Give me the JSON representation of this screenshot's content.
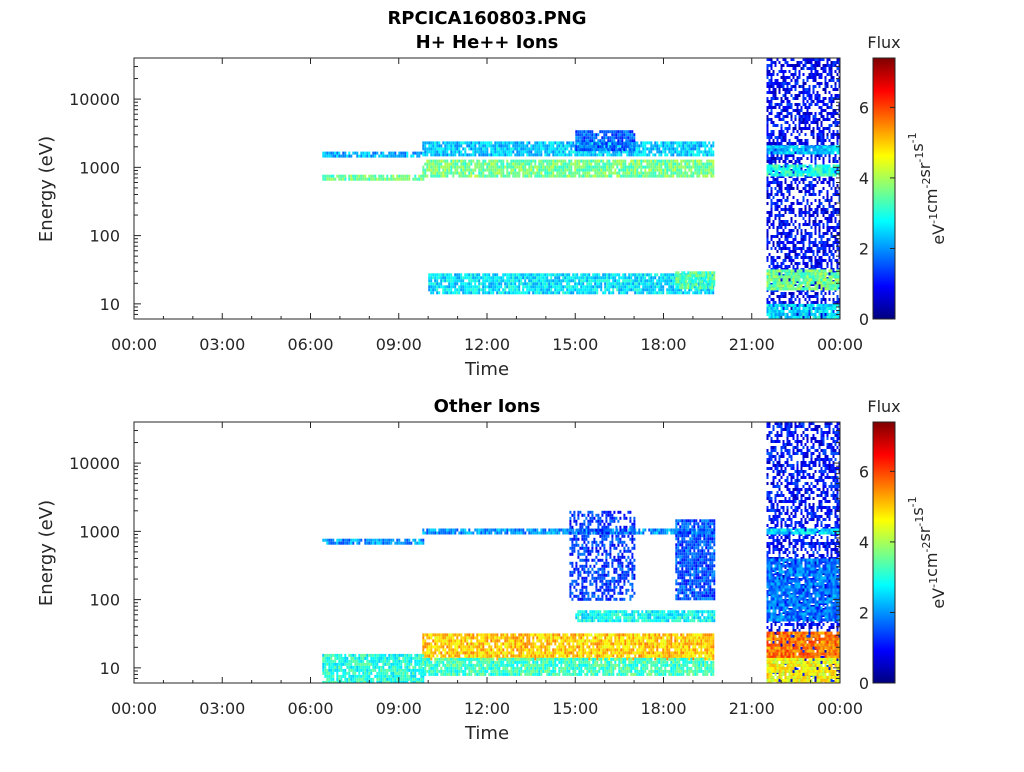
{
  "figure": {
    "title": "RPCICA160803.PNG"
  },
  "colormap": [
    "#00007f",
    "#0000ff",
    "#007fff",
    "#00ffff",
    "#7fff7f",
    "#ffff00",
    "#ff7f00",
    "#ff0000",
    "#7f0000"
  ],
  "chart_data": [
    {
      "type": "heatmap",
      "title": "H+ He++ Ions",
      "xlabel": "Time",
      "ylabel": "Energy (eV)",
      "x_ticks": [
        "00:00",
        "03:00",
        "06:00",
        "09:00",
        "12:00",
        "15:00",
        "18:00",
        "21:00",
        "00:00"
      ],
      "x_tick_hours": [
        0,
        3,
        6,
        9,
        12,
        15,
        18,
        21,
        24
      ],
      "xlim_hours": [
        0,
        24
      ],
      "y_scale": "log",
      "ylim": [
        6,
        40000
      ],
      "y_ticks": [
        "10",
        "100",
        "1000",
        "10000"
      ],
      "y_tick_values": [
        10,
        100,
        1000,
        10000
      ],
      "colorbar": {
        "label": "Flux",
        "unit": "eV-1cm-2sr-1s-1",
        "range": [
          0,
          7.4
        ],
        "ticks": [
          "0",
          "2",
          "4",
          "6"
        ],
        "tick_values": [
          0,
          2,
          4,
          6
        ]
      },
      "data_gaps_hours": [
        [
          19.75,
          21.5
        ]
      ],
      "bands": [
        {
          "t": [
            6.4,
            9.8
          ],
          "e": [
            650,
            780
          ],
          "flux": 3.5
        },
        {
          "t": [
            6.4,
            9.8
          ],
          "e": [
            1400,
            1700
          ],
          "flux": 2.2
        },
        {
          "t": [
            9.8,
            19.7
          ],
          "e": [
            750,
            1300
          ],
          "flux": 3.6
        },
        {
          "t": [
            9.8,
            19.7
          ],
          "e": [
            1600,
            2400
          ],
          "flux": 2.4
        },
        {
          "t": [
            10.0,
            19.7
          ],
          "e": [
            14,
            28
          ],
          "flux": 2.6
        },
        {
          "t": [
            18.4,
            19.7
          ],
          "e": [
            18,
            30
          ],
          "flux": 3.4
        },
        {
          "t": [
            15.0,
            17.0
          ],
          "e": [
            1800,
            3500
          ],
          "flux": 1.6
        },
        {
          "t": [
            21.5,
            24
          ],
          "e": [
            6,
            40000
          ],
          "flux": 0.9
        },
        {
          "t": [
            21.5,
            24
          ],
          "e": [
            16,
            32
          ],
          "flux": 3.6
        },
        {
          "t": [
            21.5,
            24
          ],
          "e": [
            800,
            1100
          ],
          "flux": 3.0
        },
        {
          "t": [
            21.5,
            24
          ],
          "e": [
            1700,
            2100
          ],
          "flux": 2.4
        },
        {
          "t": [
            21.5,
            24
          ],
          "e": [
            6,
            10
          ],
          "flux": 2.6
        }
      ]
    },
    {
      "type": "heatmap",
      "title": "Other Ions",
      "xlabel": "Time",
      "ylabel": "Energy (eV)",
      "x_ticks": [
        "00:00",
        "03:00",
        "06:00",
        "09:00",
        "12:00",
        "15:00",
        "18:00",
        "21:00",
        "00:00"
      ],
      "x_tick_hours": [
        0,
        3,
        6,
        9,
        12,
        15,
        18,
        21,
        24
      ],
      "xlim_hours": [
        0,
        24
      ],
      "y_scale": "log",
      "ylim": [
        6,
        40000
      ],
      "y_ticks": [
        "10",
        "100",
        "1000",
        "10000"
      ],
      "y_tick_values": [
        10,
        100,
        1000,
        10000
      ],
      "colorbar": {
        "label": "Flux",
        "unit": "eV-1cm-2sr-1s-1",
        "range": [
          0,
          7.4
        ],
        "ticks": [
          "0",
          "2",
          "4",
          "6"
        ],
        "tick_values": [
          0,
          2,
          4,
          6
        ]
      },
      "data_gaps_hours": [
        [
          19.75,
          21.5
        ]
      ],
      "bands": [
        {
          "t": [
            6.4,
            9.8
          ],
          "e": [
            6,
            16
          ],
          "flux": 3.0
        },
        {
          "t": [
            6.4,
            9.8
          ],
          "e": [
            700,
            780
          ],
          "flux": 2.0
        },
        {
          "t": [
            9.8,
            19.7
          ],
          "e": [
            14,
            32
          ],
          "flux": 5.0
        },
        {
          "t": [
            9.8,
            19.7
          ],
          "e": [
            8,
            14
          ],
          "flux": 3.2
        },
        {
          "t": [
            9.8,
            19.7
          ],
          "e": [
            900,
            1100
          ],
          "flux": 2.0
        },
        {
          "t": [
            15.0,
            19.7
          ],
          "e": [
            50,
            70
          ],
          "flux": 2.8
        },
        {
          "t": [
            14.8,
            17.0
          ],
          "e": [
            100,
            2000
          ],
          "flux": 1.3
        },
        {
          "t": [
            18.4,
            19.7
          ],
          "e": [
            100,
            1500
          ],
          "flux": 1.5
        },
        {
          "t": [
            21.5,
            24
          ],
          "e": [
            6,
            40000
          ],
          "flux": 1.0
        },
        {
          "t": [
            21.5,
            24
          ],
          "e": [
            14,
            34
          ],
          "flux": 5.6
        },
        {
          "t": [
            21.5,
            24
          ],
          "e": [
            6,
            14
          ],
          "flux": 4.6
        },
        {
          "t": [
            21.5,
            24
          ],
          "e": [
            50,
            400
          ],
          "flux": 1.8
        },
        {
          "t": [
            21.5,
            24
          ],
          "e": [
            900,
            1100
          ],
          "flux": 2.6
        }
      ]
    }
  ]
}
